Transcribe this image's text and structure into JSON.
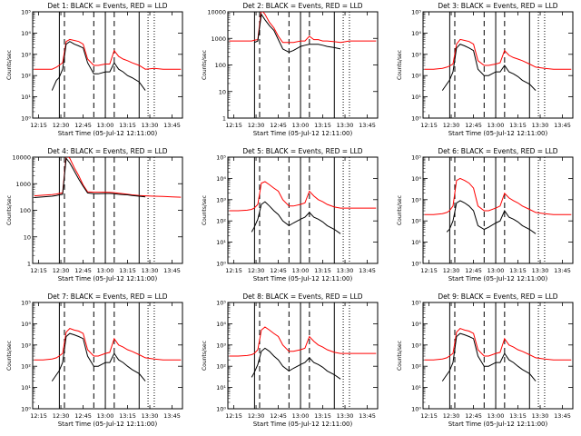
{
  "figure": {
    "colors": {
      "events": "#000000",
      "lld": "#ff0000",
      "axis": "#000000",
      "background": "#ffffff"
    },
    "xticks": [
      "12:15",
      "12:30",
      "12:45",
      "13:00",
      "13:15",
      "13:30",
      "13:45"
    ],
    "xtick_hours": [
      12.25,
      12.5,
      12.75,
      13.0,
      13.25,
      13.5,
      13.75
    ],
    "xlim_hours": [
      12.183,
      13.867
    ],
    "xlabel": "Start Time (05-Jul-12 12:11:00)",
    "ylabel": "Counts/sec",
    "ytick_log": [
      "10⁰",
      "10¹",
      "10²",
      "10³",
      "10⁴",
      "10⁵"
    ],
    "ytick_lin": [
      "1",
      "10",
      "100",
      "1000",
      "10000"
    ],
    "solid_markers_hours": [
      12.483,
      13.0,
      13.38
    ],
    "dashed_markers_hours": [
      12.54,
      12.87,
      13.1
    ],
    "dotted_markers_hours": [
      13.48,
      13.55
    ]
  },
  "chart_data": [
    {
      "type": "line",
      "title": "Det 1: BLACK = Events, RED = LLD",
      "yscale": "log",
      "ylim": [
        1,
        100000
      ],
      "ytick_style": "log",
      "xlabel": "Start Time (05-Jul-12 12:11:00)",
      "ylabel": "Counts/sec",
      "x_hours": [
        12.2,
        12.3,
        12.4,
        12.45,
        12.48,
        12.52,
        12.56,
        12.6,
        12.65,
        12.7,
        12.75,
        12.8,
        12.87,
        12.92,
        13.0,
        13.05,
        13.1,
        13.15,
        13.2,
        13.25,
        13.3,
        13.38,
        13.45,
        13.55,
        13.65,
        13.75,
        13.85
      ],
      "series": [
        {
          "name": "Events",
          "color": "#000000",
          "values": [
            null,
            null,
            20,
            60,
            80,
            200,
            3000,
            4000,
            3000,
            2500,
            2000,
            400,
            120,
            120,
            150,
            150,
            400,
            200,
            150,
            100,
            80,
            50,
            20,
            null,
            null,
            null,
            null
          ]
        },
        {
          "name": "LLD",
          "color": "#ff0000",
          "values": [
            200,
            200,
            200,
            250,
            300,
            400,
            4000,
            5000,
            4500,
            4000,
            3000,
            600,
            300,
            300,
            350,
            350,
            1500,
            800,
            600,
            500,
            400,
            300,
            200,
            220,
            200,
            200,
            200
          ]
        }
      ]
    },
    {
      "type": "line",
      "title": "Det 2: BLACK = Events, RED = LLD",
      "yscale": "log",
      "ylim": [
        1,
        10000
      ],
      "ytick_style": "linear",
      "xlabel": "Start Time (05-Jul-12 12:11:00)",
      "ylabel": "Counts/sec",
      "x_hours": [
        12.2,
        12.3,
        12.4,
        12.45,
        12.48,
        12.52,
        12.56,
        12.6,
        12.65,
        12.7,
        12.75,
        12.8,
        12.87,
        12.92,
        13.0,
        13.05,
        13.1,
        13.15,
        13.2,
        13.25,
        13.3,
        13.38,
        13.45,
        13.55,
        13.65,
        13.75,
        13.85
      ],
      "series": [
        {
          "name": "Events",
          "color": "#000000",
          "values": [
            null,
            null,
            null,
            null,
            700,
            800,
            8000,
            5000,
            3000,
            2000,
            900,
            400,
            300,
            350,
            500,
            550,
            600,
            600,
            600,
            550,
            500,
            450,
            400,
            null,
            null,
            null,
            null
          ]
        },
        {
          "name": "LLD",
          "color": "#ff0000",
          "values": [
            800,
            800,
            800,
            800,
            850,
            900,
            12000,
            8000,
            4000,
            2500,
            1200,
            700,
            700,
            700,
            800,
            800,
            1200,
            900,
            900,
            800,
            800,
            750,
            700,
            800,
            800,
            800,
            800
          ]
        }
      ]
    },
    {
      "type": "line",
      "title": "Det 3: BLACK = Events, RED = LLD",
      "yscale": "log",
      "ylim": [
        1,
        100000
      ],
      "ytick_style": "log",
      "xlabel": "Start Time (05-Jul-12 12:11:00)",
      "ylabel": "Counts/sec",
      "x_hours": [
        12.2,
        12.3,
        12.4,
        12.45,
        12.48,
        12.52,
        12.56,
        12.6,
        12.65,
        12.7,
        12.75,
        12.8,
        12.87,
        12.92,
        13.0,
        13.05,
        13.1,
        13.15,
        13.2,
        13.25,
        13.3,
        13.38,
        13.45,
        13.55,
        13.65,
        13.75,
        13.85
      ],
      "series": [
        {
          "name": "Events",
          "color": "#000000",
          "values": [
            null,
            null,
            20,
            40,
            60,
            150,
            2000,
            3000,
            2500,
            2000,
            1500,
            200,
            100,
            100,
            150,
            150,
            300,
            150,
            120,
            90,
            60,
            40,
            20,
            null,
            null,
            null,
            null
          ]
        },
        {
          "name": "LLD",
          "color": "#ff0000",
          "values": [
            200,
            200,
            220,
            250,
            280,
            350,
            3000,
            5000,
            4500,
            4000,
            3000,
            500,
            300,
            300,
            350,
            400,
            1500,
            900,
            700,
            600,
            500,
            350,
            250,
            220,
            200,
            200,
            200
          ]
        }
      ]
    },
    {
      "type": "line",
      "title": "Det 4: BLACK = Events, RED = LLD",
      "yscale": "log",
      "ylim": [
        1,
        10000
      ],
      "ytick_style": "linear",
      "xlabel": "Start Time (05-Jul-12 12:11:00)",
      "ylabel": "Counts/sec",
      "x_hours": [
        12.2,
        12.3,
        12.4,
        12.45,
        12.48,
        12.52,
        12.56,
        12.6,
        12.65,
        12.7,
        12.75,
        12.8,
        12.87,
        12.92,
        13.0,
        13.05,
        13.1,
        13.15,
        13.2,
        13.25,
        13.3,
        13.38,
        13.45,
        13.55,
        13.65,
        13.75,
        13.85
      ],
      "series": [
        {
          "name": "Events",
          "color": "#000000",
          "values": [
            300,
            320,
            340,
            360,
            380,
            400,
            9000,
            6000,
            3000,
            1500,
            800,
            450,
            420,
            420,
            430,
            430,
            420,
            400,
            390,
            380,
            360,
            340,
            320,
            null,
            null,
            null,
            null
          ]
        },
        {
          "name": "LLD",
          "color": "#ff0000",
          "values": [
            350,
            370,
            390,
            410,
            430,
            450,
            12000,
            9000,
            4000,
            2000,
            900,
            500,
            480,
            480,
            480,
            470,
            460,
            440,
            420,
            400,
            380,
            360,
            350,
            340,
            330,
            320,
            310
          ]
        }
      ]
    },
    {
      "type": "line",
      "title": "Det 5: BLACK = Events, RED = LLD",
      "yscale": "log",
      "ylim": [
        1,
        100000
      ],
      "ytick_style": "log",
      "xlabel": "Start Time (05-Jul-12 12:11:00)",
      "ylabel": "Counts/sec",
      "x_hours": [
        12.2,
        12.3,
        12.4,
        12.45,
        12.48,
        12.52,
        12.56,
        12.6,
        12.65,
        12.7,
        12.75,
        12.8,
        12.87,
        12.92,
        13.0,
        13.05,
        13.1,
        13.15,
        13.2,
        13.25,
        13.3,
        13.38,
        13.45,
        13.55,
        13.65,
        13.75,
        13.85
      ],
      "series": [
        {
          "name": "Events",
          "color": "#000000",
          "values": [
            null,
            null,
            null,
            30,
            50,
            120,
            600,
            800,
            500,
            300,
            200,
            100,
            60,
            80,
            120,
            150,
            250,
            150,
            120,
            90,
            60,
            40,
            25,
            null,
            null,
            null,
            null
          ]
        },
        {
          "name": "LLD",
          "color": "#ff0000",
          "values": [
            300,
            300,
            320,
            350,
            400,
            600,
            6000,
            7000,
            5000,
            3500,
            2500,
            1000,
            500,
            500,
            600,
            700,
            2500,
            1500,
            1000,
            800,
            600,
            450,
            400,
            400,
            400,
            400,
            400
          ]
        }
      ]
    },
    {
      "type": "line",
      "title": "Det 6: BLACK = Events, RED = LLD",
      "yscale": "log",
      "ylim": [
        1,
        100000
      ],
      "ytick_style": "log",
      "xlabel": "Start Time (05-Jul-12 12:11:00)",
      "ylabel": "Counts/sec",
      "x_hours": [
        12.2,
        12.3,
        12.4,
        12.45,
        12.48,
        12.52,
        12.56,
        12.6,
        12.65,
        12.7,
        12.75,
        12.8,
        12.87,
        12.92,
        13.0,
        13.05,
        13.1,
        13.15,
        13.2,
        13.25,
        13.3,
        13.38,
        13.45,
        13.55,
        13.65,
        13.75,
        13.85
      ],
      "series": [
        {
          "name": "Events",
          "color": "#000000",
          "values": [
            null,
            null,
            null,
            30,
            40,
            100,
            700,
            900,
            700,
            500,
            300,
            60,
            40,
            50,
            80,
            100,
            300,
            150,
            120,
            90,
            60,
            40,
            25,
            null,
            null,
            null,
            null
          ]
        },
        {
          "name": "LLD",
          "color": "#ff0000",
          "values": [
            200,
            200,
            220,
            250,
            300,
            500,
            8000,
            10000,
            8000,
            6000,
            3500,
            500,
            300,
            300,
            400,
            500,
            2000,
            1200,
            900,
            700,
            500,
            350,
            250,
            220,
            200,
            200,
            200
          ]
        }
      ]
    },
    {
      "type": "line",
      "title": "Det 7: BLACK = Events, RED = LLD",
      "yscale": "log",
      "ylim": [
        1,
        100000
      ],
      "ytick_style": "log",
      "xlabel": "Start Time (05-Jul-12 12:11:00)",
      "ylabel": "Counts/sec",
      "x_hours": [
        12.2,
        12.3,
        12.4,
        12.45,
        12.48,
        12.52,
        12.56,
        12.6,
        12.65,
        12.7,
        12.75,
        12.8,
        12.87,
        12.92,
        13.0,
        13.05,
        13.1,
        13.15,
        13.2,
        13.25,
        13.3,
        13.38,
        13.45,
        13.55,
        13.65,
        13.75,
        13.85
      ],
      "series": [
        {
          "name": "Events",
          "color": "#000000",
          "values": [
            null,
            null,
            20,
            40,
            60,
            150,
            2500,
            3500,
            3000,
            2500,
            2000,
            300,
            100,
            100,
            150,
            150,
            400,
            200,
            150,
            100,
            70,
            45,
            20,
            null,
            null,
            null,
            null
          ]
        },
        {
          "name": "LLD",
          "color": "#ff0000",
          "values": [
            200,
            200,
            220,
            250,
            300,
            400,
            4000,
            6000,
            5000,
            4500,
            3500,
            600,
            300,
            300,
            400,
            450,
            2000,
            1000,
            800,
            600,
            500,
            350,
            250,
            220,
            200,
            200,
            200
          ]
        }
      ]
    },
    {
      "type": "line",
      "title": "Det 8: BLACK = Events, RED = LLD",
      "yscale": "log",
      "ylim": [
        1,
        100000
      ],
      "ytick_style": "log",
      "xlabel": "Start Time (05-Jul-12 12:11:00)",
      "ylabel": "Counts/sec",
      "x_hours": [
        12.2,
        12.3,
        12.4,
        12.45,
        12.48,
        12.52,
        12.56,
        12.6,
        12.65,
        12.7,
        12.75,
        12.8,
        12.87,
        12.92,
        13.0,
        13.05,
        13.1,
        13.15,
        13.2,
        13.25,
        13.3,
        13.38,
        13.45,
        13.55,
        13.65,
        13.75,
        13.85
      ],
      "series": [
        {
          "name": "Events",
          "color": "#000000",
          "values": [
            null,
            null,
            null,
            30,
            50,
            120,
            500,
            700,
            500,
            300,
            200,
            100,
            60,
            80,
            120,
            150,
            250,
            150,
            120,
            90,
            60,
            40,
            25,
            null,
            null,
            null,
            null
          ]
        },
        {
          "name": "LLD",
          "color": "#ff0000",
          "values": [
            300,
            300,
            320,
            350,
            400,
            600,
            5000,
            7000,
            5000,
            3500,
            2500,
            1000,
            500,
            500,
            600,
            700,
            2500,
            1500,
            1000,
            800,
            600,
            450,
            400,
            400,
            400,
            400,
            400
          ]
        }
      ]
    },
    {
      "type": "line",
      "title": "Det 9: BLACK = Events, RED = LLD",
      "yscale": "log",
      "ylim": [
        1,
        100000
      ],
      "ytick_style": "log",
      "xlabel": "Start Time (05-Jul-12 12:11:00)",
      "ylabel": "Counts/sec",
      "x_hours": [
        12.2,
        12.3,
        12.4,
        12.45,
        12.48,
        12.52,
        12.56,
        12.6,
        12.65,
        12.7,
        12.75,
        12.8,
        12.87,
        12.92,
        13.0,
        13.05,
        13.1,
        13.15,
        13.2,
        13.25,
        13.3,
        13.38,
        13.45,
        13.55,
        13.65,
        13.75,
        13.85
      ],
      "series": [
        {
          "name": "Events",
          "color": "#000000",
          "values": [
            null,
            null,
            20,
            40,
            60,
            150,
            2500,
            3500,
            3000,
            2500,
            2000,
            300,
            100,
            100,
            150,
            150,
            400,
            200,
            150,
            100,
            70,
            45,
            20,
            null,
            null,
            null,
            null
          ]
        },
        {
          "name": "LLD",
          "color": "#ff0000",
          "values": [
            200,
            200,
            220,
            250,
            300,
            400,
            4000,
            6000,
            5000,
            4500,
            3500,
            600,
            300,
            300,
            400,
            450,
            2000,
            1000,
            800,
            600,
            500,
            350,
            250,
            220,
            200,
            200,
            200
          ]
        }
      ]
    }
  ]
}
